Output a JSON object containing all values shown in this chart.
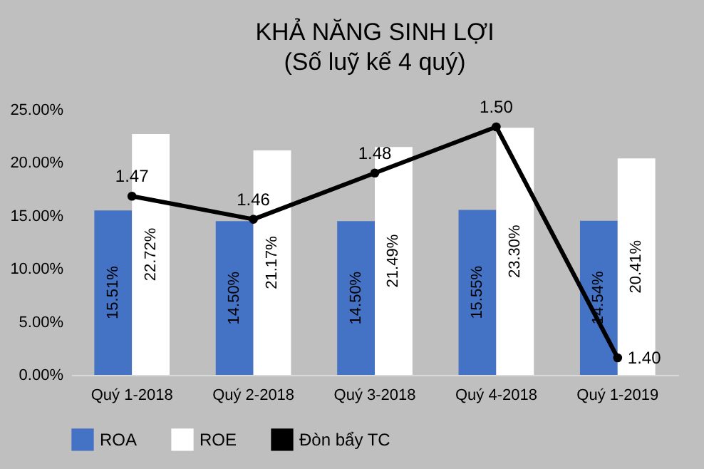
{
  "chart_data": {
    "type": "bar",
    "title": "KHẢ NĂNG SINH LỢI",
    "subtitle": "(Số luỹ kế 4 quý)",
    "categories": [
      "Quý 1-2018",
      "Quý 2-2018",
      "Quý 3-2018",
      "Quý 4-2018",
      "Quý 1-2019"
    ],
    "series": [
      {
        "name": "ROA",
        "color": "#4472c4",
        "values": [
          15.51,
          14.5,
          14.5,
          15.55,
          14.54
        ],
        "value_labels": [
          "15.51%",
          "14.50%",
          "14.50%",
          "15.55%",
          "14.54%"
        ]
      },
      {
        "name": "ROE",
        "color": "#ffffff",
        "values": [
          22.72,
          21.17,
          21.49,
          23.3,
          20.41
        ],
        "value_labels": [
          "22.72%",
          "21.17%",
          "21.49%",
          "23.30%",
          "20.41%"
        ]
      },
      {
        "name": "Đòn bẩy TC",
        "type": "line",
        "axis": "y2",
        "color": "#000000",
        "values": [
          1.47,
          1.46,
          1.48,
          1.5,
          1.4
        ],
        "value_labels": [
          "1.47",
          "1.46",
          "1.48",
          "1.50",
          "1.40"
        ]
      }
    ],
    "ylim": [
      0,
      25
    ],
    "yticks": [
      {
        "value": 0,
        "label": "0.00%"
      },
      {
        "value": 5,
        "label": "5.00%"
      },
      {
        "value": 10,
        "label": "10.00%"
      },
      {
        "value": 15,
        "label": "15.00%"
      },
      {
        "value": 20,
        "label": "20.00%"
      },
      {
        "value": 25,
        "label": "25.00%"
      }
    ],
    "legend": "bottom",
    "marker": "circle",
    "line_style": "solid",
    "grid": false
  }
}
